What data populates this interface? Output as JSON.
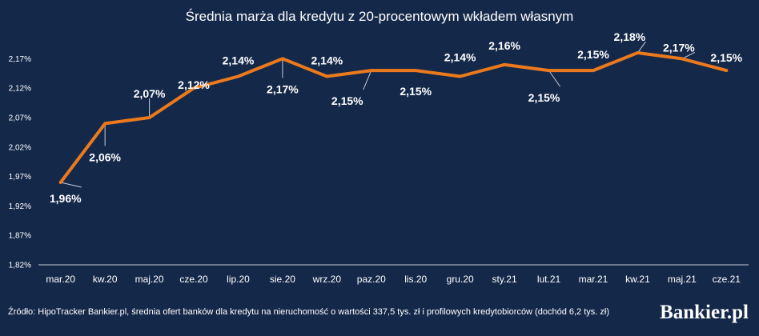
{
  "chart_data": {
    "type": "line",
    "title": "Średnia marża dla kredytu z 20-procentowym wkładem własnym",
    "categories": [
      "mar.20",
      "kw.20",
      "maj.20",
      "cze.20",
      "lip.20",
      "sie.20",
      "wrz.20",
      "paz.20",
      "lis.20",
      "gru.20",
      "sty.21",
      "lut.21",
      "mar.21",
      "kw.21",
      "maj.21",
      "cze.21"
    ],
    "series": [
      {
        "values": [
          1.96,
          2.06,
          2.07,
          2.12,
          2.14,
          2.17,
          2.14,
          2.15,
          2.15,
          2.14,
          2.16,
          2.15,
          2.15,
          2.18,
          2.17,
          2.15
        ]
      }
    ],
    "data_labels": [
      "1,96%",
      "2,06%",
      "2,07%",
      "2,12%",
      "2,14%",
      "2,17%",
      "2,14%",
      "2,15%",
      "2,15%",
      "2,14%",
      "2,16%",
      "2,15%",
      "2,15%",
      "2,18%",
      "2,17%",
      "2,15%"
    ],
    "yticks": [
      "1,82%",
      "1,87%",
      "1,92%",
      "1,97%",
      "2,02%",
      "2,07%",
      "2,12%",
      "2,17%"
    ],
    "ylim": [
      1.82,
      2.195
    ],
    "xlabel": "",
    "ylabel": "",
    "grid": false,
    "line_color": "#ec7a1c",
    "background": "#14284a"
  },
  "footer": {
    "source": "Źródło: HipoTracker Bankier.pl, średnia ofert banków dla kredytu na nieruchomość o wartości 337,5 tys. zł i profilowych kredytobiorców (dochód 6,2 tys. zł)",
    "brand": "Bankier.pl"
  }
}
